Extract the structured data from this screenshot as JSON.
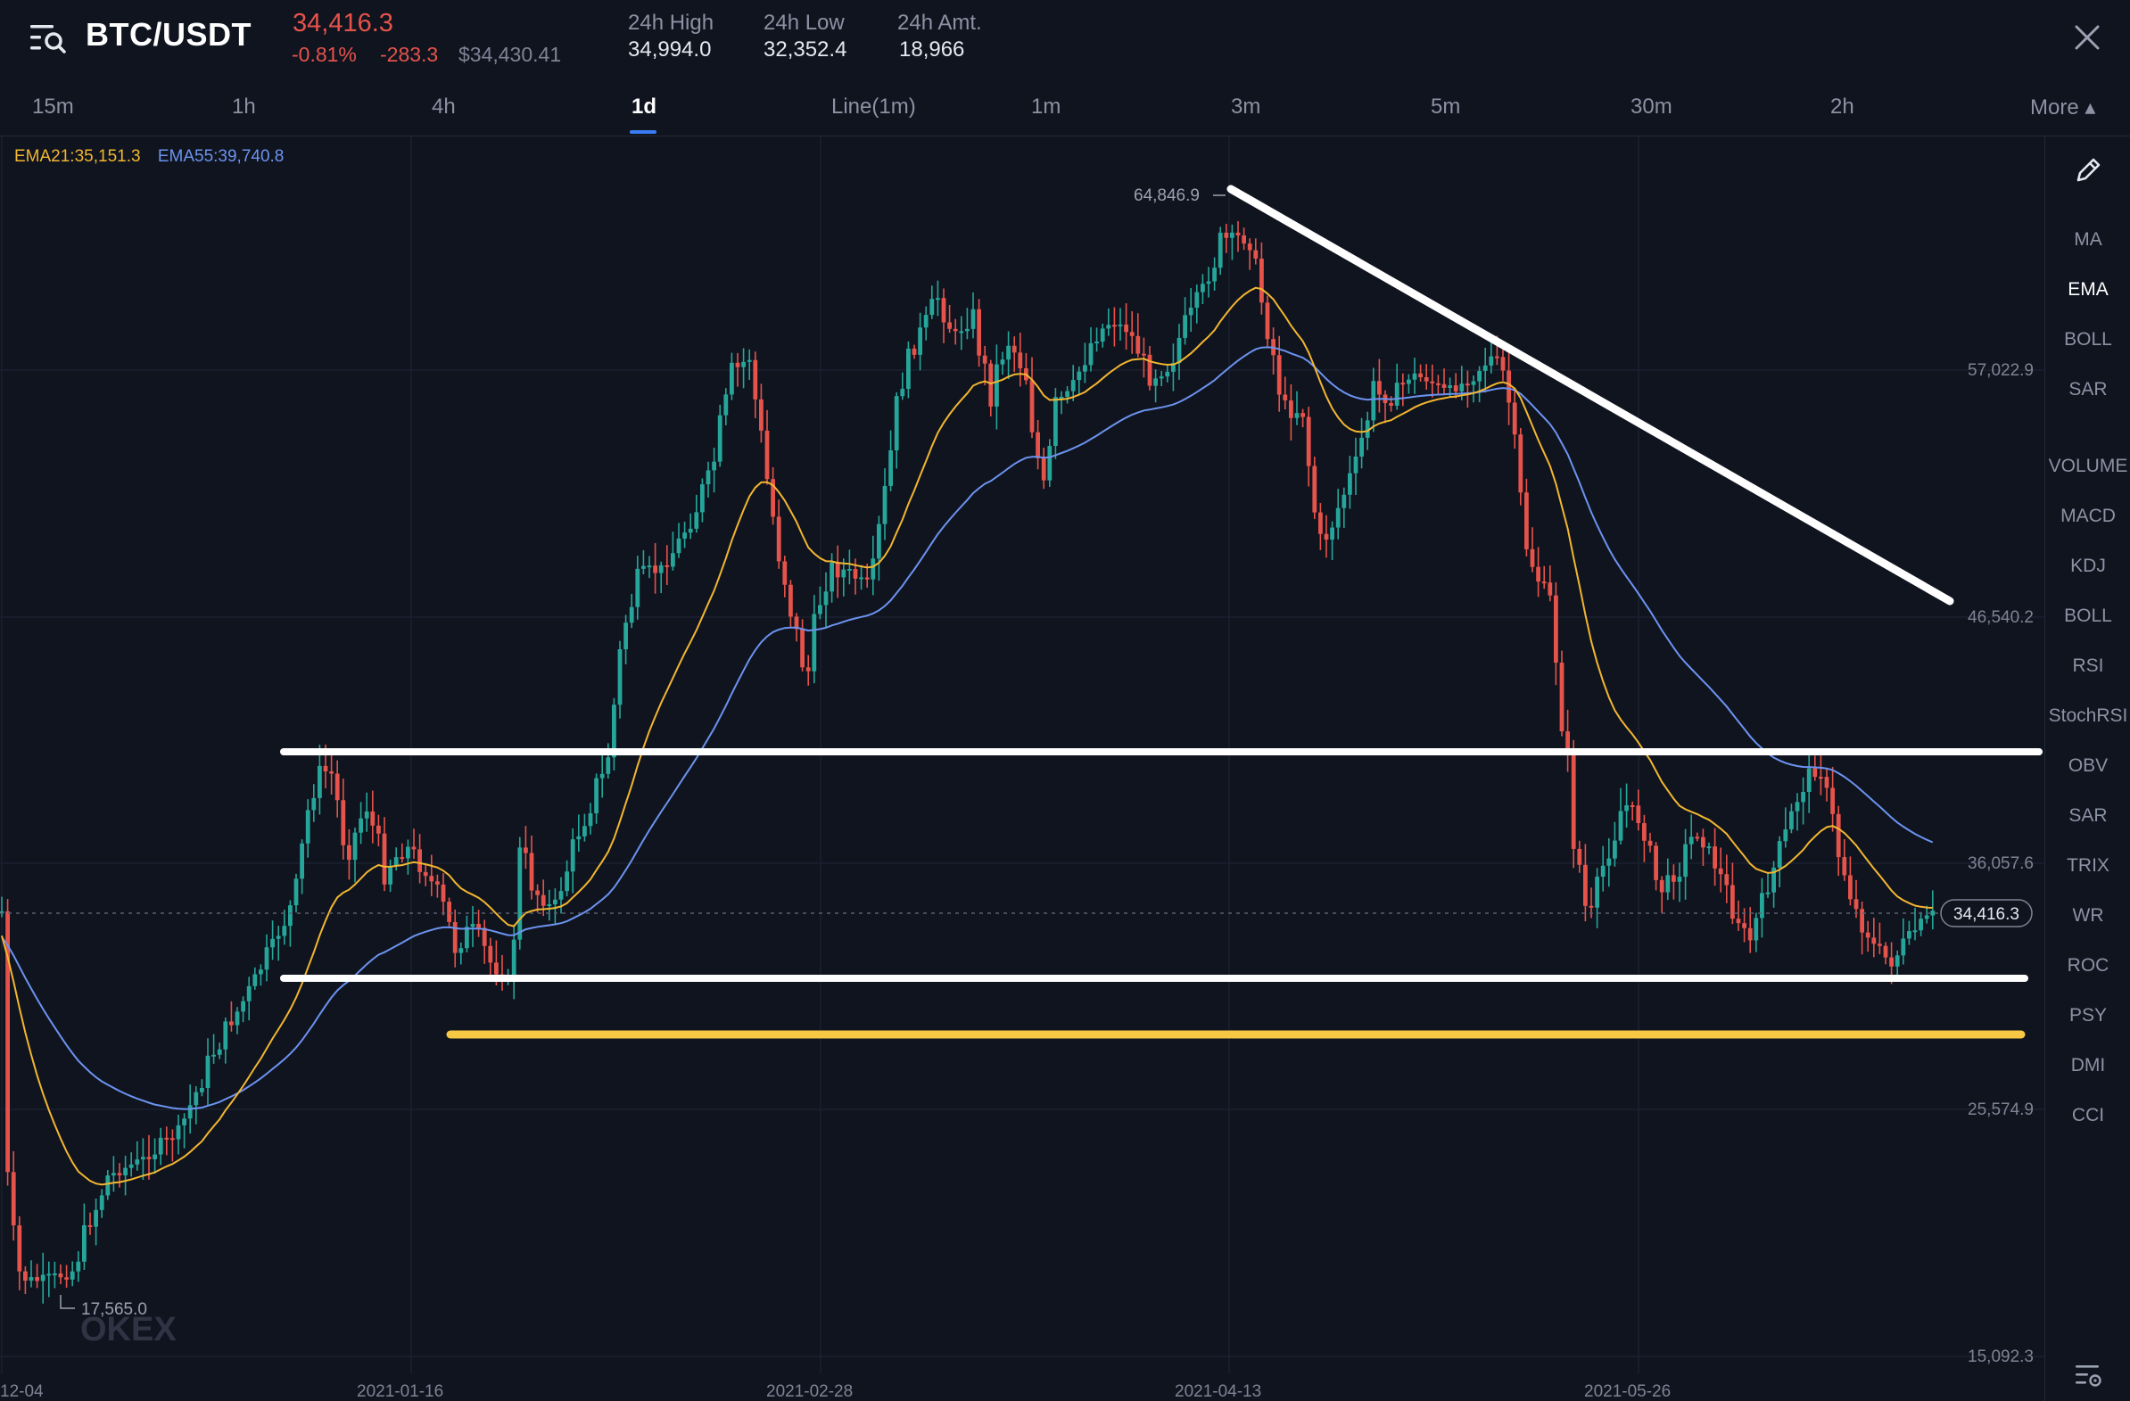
{
  "header": {
    "menu_icon": "menu-search-icon",
    "pair": "BTC/USDT",
    "last_price": "34,416.3",
    "change_pct": "-0.81%",
    "change_abs": "-283.3",
    "usd_price": "$34,430.41",
    "stats": [
      {
        "label": "24h High",
        "value": "34,994.0"
      },
      {
        "label": "24h Low",
        "value": "32,352.4"
      },
      {
        "label": "24h Amt.",
        "value": "18,966"
      }
    ],
    "close_icon": "close-icon"
  },
  "timeframes": [
    {
      "label": "15m",
      "active": false
    },
    {
      "label": "1h",
      "active": false
    },
    {
      "label": "4h",
      "active": false
    },
    {
      "label": "1d",
      "active": true
    },
    {
      "label": "Line(1m)",
      "active": false
    },
    {
      "label": "1m",
      "active": false
    },
    {
      "label": "3m",
      "active": false
    },
    {
      "label": "5m",
      "active": false
    },
    {
      "label": "30m",
      "active": false
    },
    {
      "label": "2h",
      "active": false
    },
    {
      "label": "More ▴",
      "active": false
    }
  ],
  "ema_legend": {
    "ema21": "EMA21:35,151.3",
    "ema55": "EMA55:39,740.8"
  },
  "colors": {
    "up": "#26a69a",
    "down": "#e5534b",
    "ema21": "#f2b630",
    "ema55": "#6c93f0",
    "support": "#f7c843",
    "drawn_line": "#ffffff",
    "accent": "#3b7cf4"
  },
  "chart_data": {
    "type": "candlestick",
    "pair": "BTC/USDT",
    "interval": "1d",
    "y_ticks": [
      "57,022.9",
      "46,540.2",
      "36,057.6",
      "25,574.9",
      "15,092.3"
    ],
    "x_ticks": [
      "12-04",
      "2021-01-16",
      "2021-02-28",
      "2021-04-13",
      "2021-05-26"
    ],
    "high_marker": "64,846.9",
    "low_marker": "17,565.0",
    "current_price_tag": "34,416.3",
    "watermark": "OKEX"
  },
  "side_toolbar": {
    "pencil_icon": "pencil-icon",
    "main_indicators": [
      "MA",
      "EMA",
      "BOLL",
      "SAR"
    ],
    "active_main": "EMA",
    "sub_indicators": [
      "VOLUME",
      "MACD",
      "KDJ",
      "BOLL",
      "RSI",
      "StochRSI",
      "OBV",
      "SAR",
      "TRIX",
      "WR",
      "ROC",
      "PSY",
      "DMI",
      "CCI"
    ],
    "settings_icon": "settings-icon"
  }
}
